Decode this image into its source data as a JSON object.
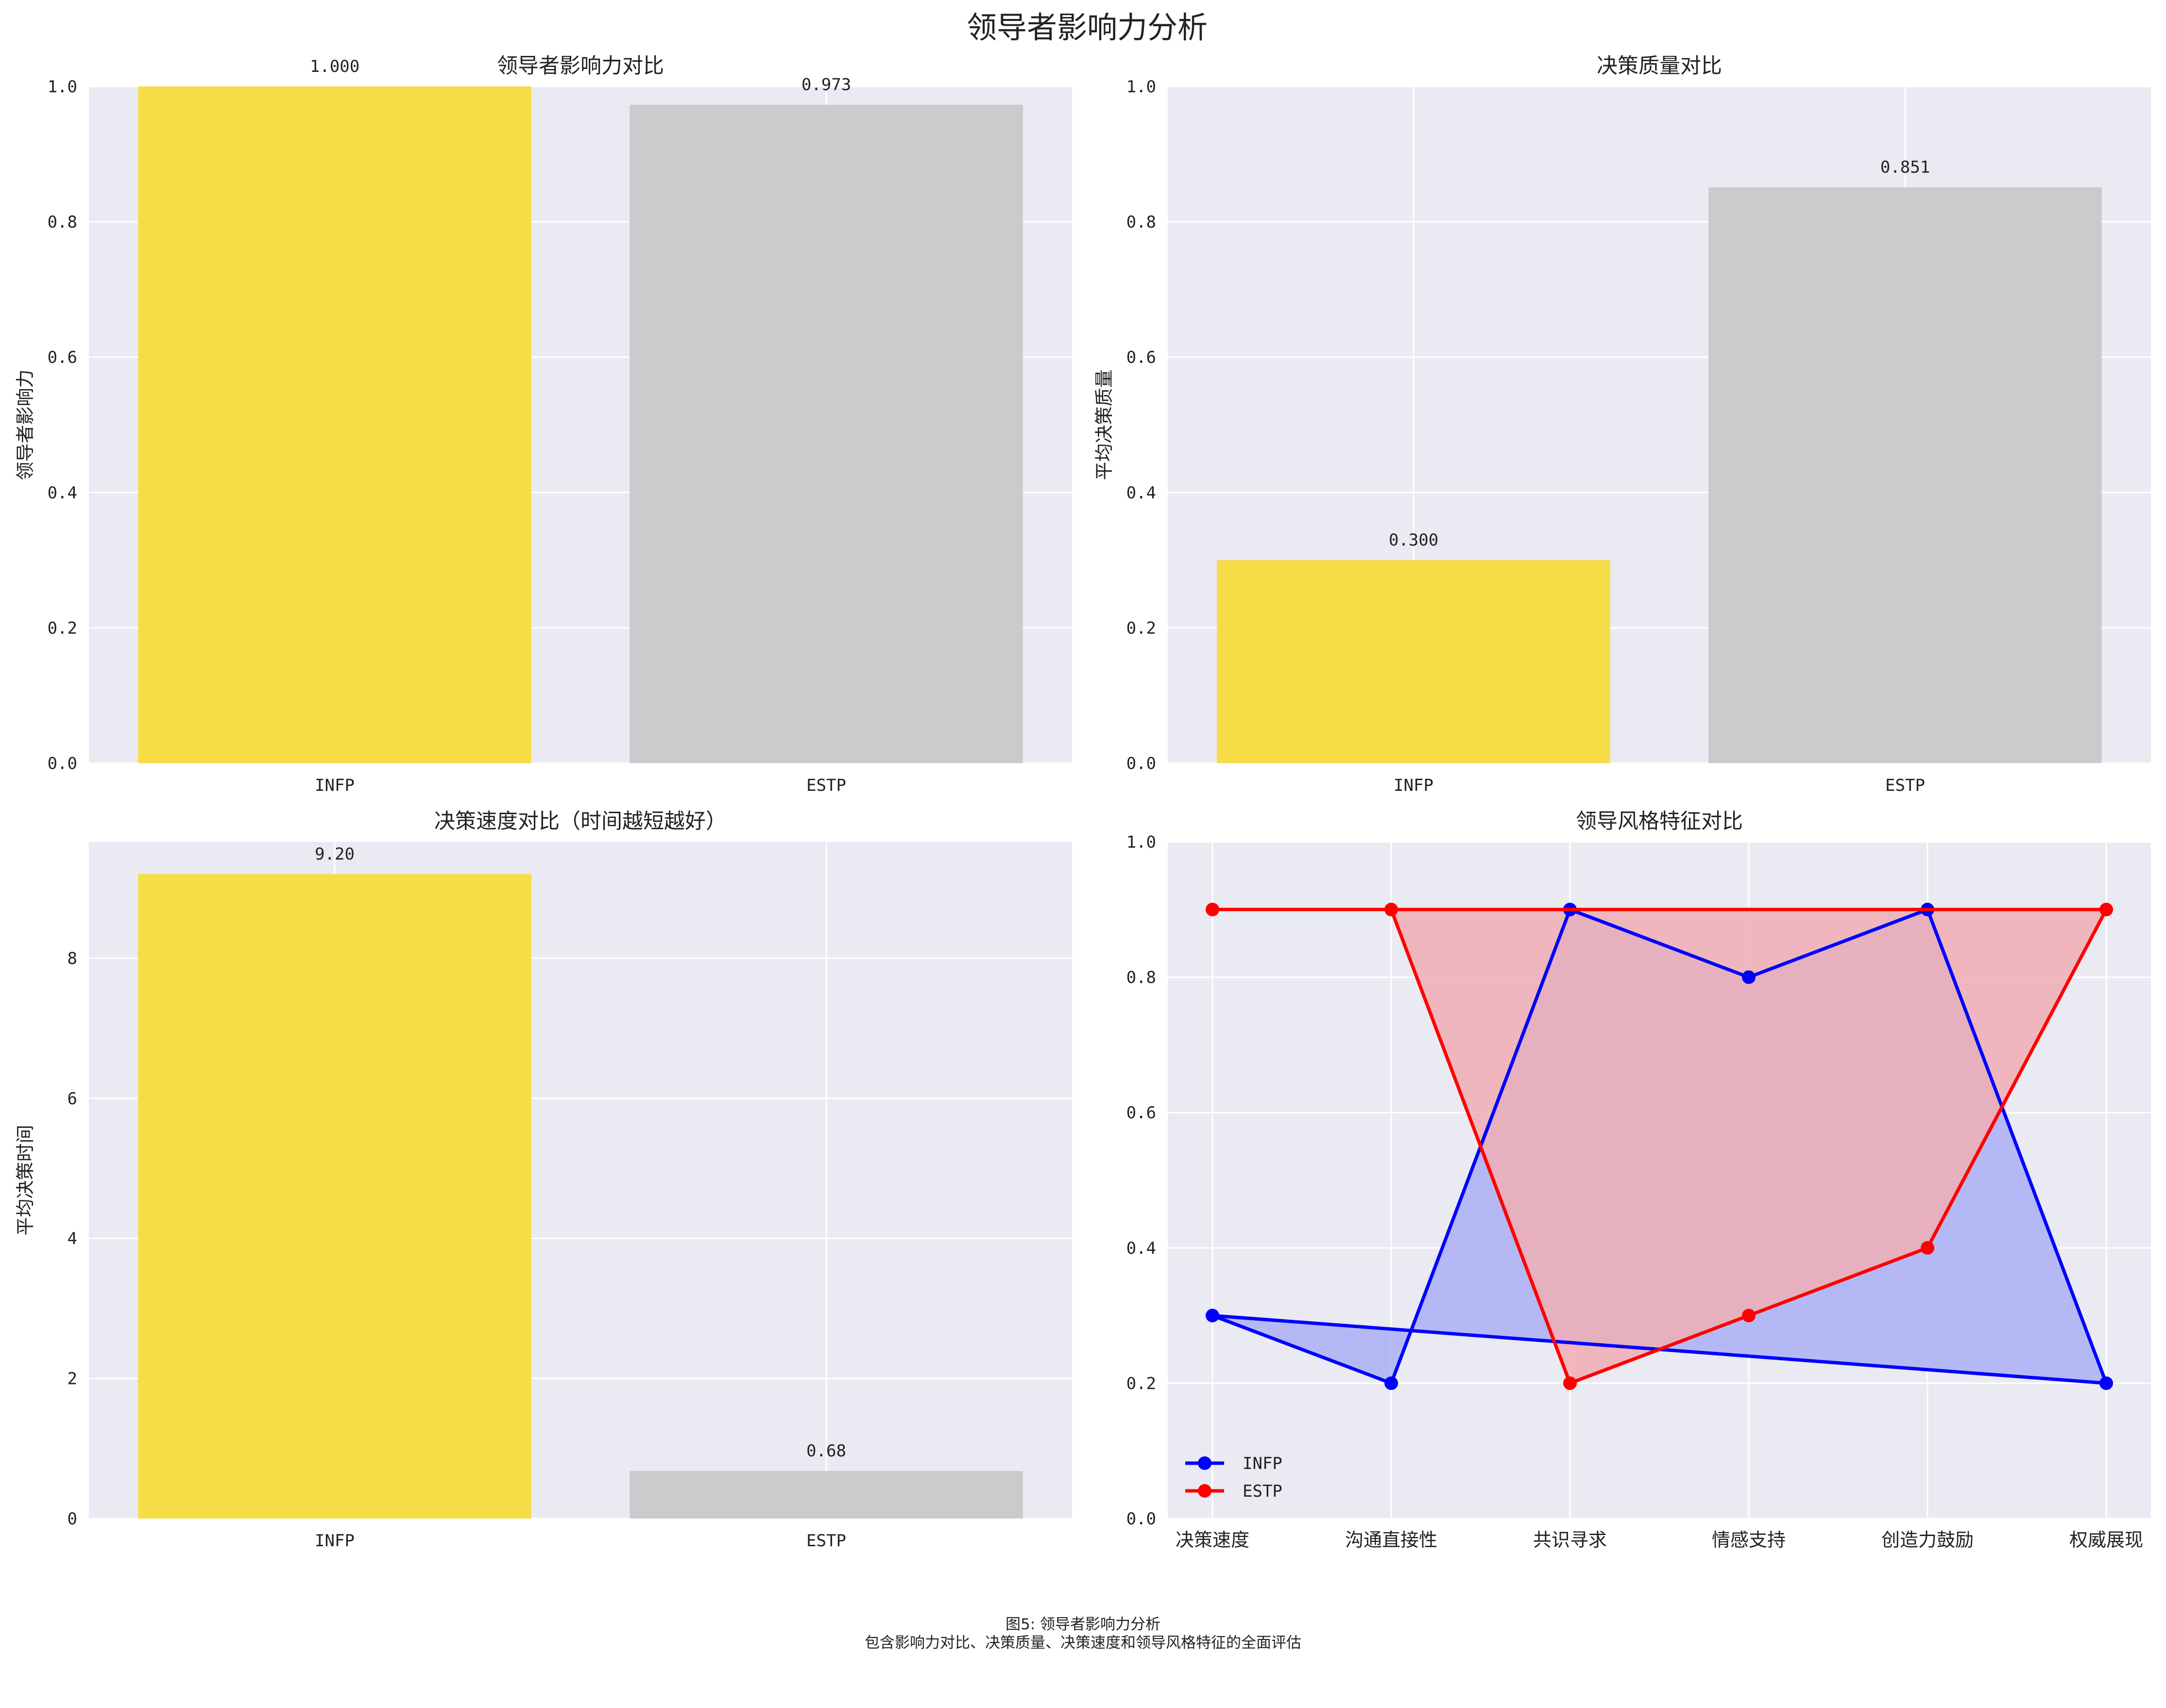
{
  "suptitle": "领导者影响力分析",
  "caption": {
    "line1": "图5: 领导者影响力分析",
    "line2": "包含影响力对比、决策质量、决策速度和领导风格特征的全面评估"
  },
  "colors": {
    "background": "#eaeaf2",
    "grid": "#ffffff",
    "infp_bar": "#f6dd48",
    "estp_bar": "#cbcbce",
    "infp_line": "#0000ff",
    "estp_line": "#ff0000"
  },
  "chart_data": [
    {
      "id": "influence",
      "type": "bar",
      "title": "领导者影响力对比",
      "xlabel": "",
      "ylabel": "领导者影响力",
      "categories": [
        "INFP",
        "ESTP"
      ],
      "values": [
        1.0,
        0.973
      ],
      "value_labels": [
        "1.000",
        "0.973"
      ],
      "ylim": [
        0,
        1.0
      ],
      "yticks": [
        0,
        0.2,
        0.4,
        0.6,
        0.8,
        1.0
      ],
      "ytick_labels": [
        "0.0",
        "0.2",
        "0.4",
        "0.6",
        "0.8",
        "1.0"
      ],
      "grid": true
    },
    {
      "id": "quality",
      "type": "bar",
      "title": "决策质量对比",
      "xlabel": "",
      "ylabel": "平均决策质量",
      "categories": [
        "INFP",
        "ESTP"
      ],
      "values": [
        0.3,
        0.851
      ],
      "value_labels": [
        "0.300",
        "0.851"
      ],
      "ylim": [
        0,
        1.0
      ],
      "yticks": [
        0,
        0.2,
        0.4,
        0.6,
        0.8,
        1.0
      ],
      "ytick_labels": [
        "0.0",
        "0.2",
        "0.4",
        "0.6",
        "0.8",
        "1.0"
      ],
      "grid": true
    },
    {
      "id": "speed",
      "type": "bar",
      "title": "决策速度对比（时间越短越好）",
      "xlabel": "",
      "ylabel": "平均决策时间",
      "categories": [
        "INFP",
        "ESTP"
      ],
      "values": [
        9.2,
        0.68
      ],
      "value_labels": [
        "9.20",
        "0.68"
      ],
      "ylim": [
        0,
        9.66
      ],
      "yticks": [
        0,
        2,
        4,
        6,
        8
      ],
      "ytick_labels": [
        "0",
        "2",
        "4",
        "6",
        "8"
      ],
      "grid": true
    },
    {
      "id": "style",
      "type": "line",
      "title": "领导风格特征对比",
      "xlabel": "",
      "ylabel": "",
      "categories": [
        "决策速度",
        "沟通直接性",
        "共识寻求",
        "情感支持",
        "创造力鼓励",
        "权威展现"
      ],
      "series": [
        {
          "name": "INFP",
          "values": [
            0.3,
            0.2,
            0.9,
            0.8,
            0.9,
            0.2
          ],
          "color": "#0000ff",
          "fill": "#aab0f6"
        },
        {
          "name": "ESTP",
          "values": [
            0.9,
            0.9,
            0.2,
            0.3,
            0.4,
            0.9
          ],
          "color": "#ff0000",
          "fill": "#f0aeb4"
        }
      ],
      "closed_polygon": true,
      "ylim": [
        0,
        1.0
      ],
      "yticks": [
        0,
        0.2,
        0.4,
        0.6,
        0.8,
        1.0
      ],
      "ytick_labels": [
        "0.0",
        "0.2",
        "0.4",
        "0.6",
        "0.8",
        "1.0"
      ],
      "legend": "lower-left",
      "grid": true
    }
  ]
}
